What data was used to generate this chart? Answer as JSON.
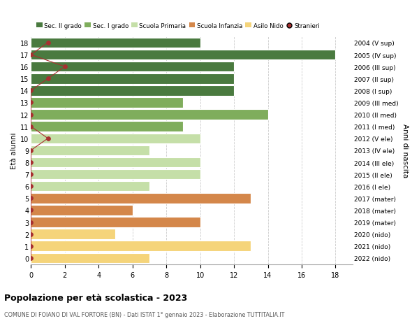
{
  "ages": [
    18,
    17,
    16,
    15,
    14,
    13,
    12,
    11,
    10,
    9,
    8,
    7,
    6,
    5,
    4,
    3,
    2,
    1,
    0
  ],
  "right_labels": [
    "2004 (V sup)",
    "2005 (IV sup)",
    "2006 (III sup)",
    "2007 (II sup)",
    "2008 (I sup)",
    "2009 (III med)",
    "2010 (II med)",
    "2011 (I med)",
    "2012 (V ele)",
    "2013 (IV ele)",
    "2014 (III ele)",
    "2015 (II ele)",
    "2016 (I ele)",
    "2017 (mater)",
    "2018 (mater)",
    "2019 (mater)",
    "2020 (nido)",
    "2021 (nido)",
    "2022 (nido)"
  ],
  "bar_values": [
    10,
    18,
    12,
    12,
    12,
    9,
    14,
    9,
    10,
    7,
    10,
    10,
    7,
    13,
    6,
    10,
    5,
    13,
    7
  ],
  "bar_colors": [
    "#4a7a3f",
    "#4a7a3f",
    "#4a7a3f",
    "#4a7a3f",
    "#4a7a3f",
    "#7fad5c",
    "#7fad5c",
    "#7fad5c",
    "#c5dfa8",
    "#c5dfa8",
    "#c5dfa8",
    "#c5dfa8",
    "#c5dfa8",
    "#d4874a",
    "#d4874a",
    "#d4874a",
    "#f5d47a",
    "#f5d47a",
    "#f5d47a"
  ],
  "stranieri_x": [
    1,
    0,
    2,
    1,
    0,
    0,
    0,
    0,
    1,
    0,
    0,
    0,
    0,
    0,
    0,
    0,
    0,
    0,
    0
  ],
  "legend_labels": [
    "Sec. II grado",
    "Sec. I grado",
    "Scuola Primaria",
    "Scuola Infanzia",
    "Asilo Nido",
    "Stranieri"
  ],
  "legend_colors": [
    "#4a7a3f",
    "#7fad5c",
    "#c5dfa8",
    "#d4874a",
    "#f5d47a",
    "#c0392b"
  ],
  "ylabel_left": "Età alunni",
  "ylabel_right": "Anni di nascita",
  "title": "Popolazione per età scolastica - 2023",
  "subtitle": "COMUNE DI FOIANO DI VAL FORTORE (BN) - Dati ISTAT 1° gennaio 2023 - Elaborazione TUTTITALIA.IT",
  "xlim_max": 19,
  "background_color": "#ffffff",
  "grid_color": "#cccccc",
  "stranieri_color": "#a83030",
  "stranieri_line_color": "#a83030"
}
